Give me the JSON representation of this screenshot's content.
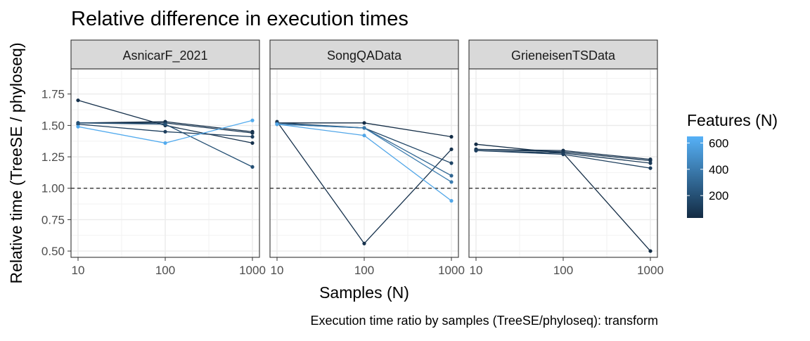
{
  "chart_data": {
    "type": "line",
    "title": "Relative difference in execution times",
    "xlabel": "Samples (N)",
    "ylabel": "Relative time (TreeSE / phyloseq)",
    "caption": "Execution time ratio by samples (TreeSE/phyloseq):  transform",
    "x_scale": "log10",
    "x_ticks": [
      10,
      100,
      1000
    ],
    "x_tick_labels": [
      "10",
      "100",
      "1000"
    ],
    "ylim": [
      0.45,
      1.95
    ],
    "y_ticks": [
      0.5,
      0.75,
      1.0,
      1.25,
      1.5,
      1.75
    ],
    "y_tick_labels": [
      "0.50",
      "0.75",
      "1.00",
      "1.25",
      "1.50",
      "1.75"
    ],
    "reference_line": 1.0,
    "grid": true,
    "legend": {
      "title": "Features (N)",
      "position": "right",
      "type": "colorbar",
      "range": [
        30,
        650
      ],
      "ticks": [
        200,
        400,
        600
      ],
      "tick_labels": [
        "200",
        "400",
        "600"
      ],
      "low_color": "#132B43",
      "high_color": "#56B1F7"
    },
    "facets": [
      {
        "label": "AsnicarF_2021",
        "series": [
          {
            "features": 60,
            "x": [
              10,
              100,
              1000
            ],
            "y": [
              1.7,
              1.5,
              1.36
            ]
          },
          {
            "features": 50,
            "x": [
              10,
              100,
              1000
            ],
            "y": [
              1.52,
              1.53,
              1.45
            ]
          },
          {
            "features": 80,
            "x": [
              10,
              100,
              1000
            ],
            "y": [
              1.52,
              1.52,
              1.44
            ]
          },
          {
            "features": 120,
            "x": [
              10,
              100,
              1000
            ],
            "y": [
              1.51,
              1.45,
              1.41
            ]
          },
          {
            "features": 200,
            "x": [
              10,
              100,
              1000
            ],
            "y": [
              1.52,
              1.51,
              1.17
            ]
          },
          {
            "features": 620,
            "x": [
              10,
              100,
              1000
            ],
            "y": [
              1.49,
              1.36,
              1.54
            ]
          }
        ]
      },
      {
        "label": "SongQAData",
        "series": [
          {
            "features": 40,
            "x": [
              10,
              100,
              1000
            ],
            "y": [
              1.52,
              1.52,
              1.41
            ]
          },
          {
            "features": 60,
            "x": [
              10,
              100,
              1000
            ],
            "y": [
              1.53,
              0.56,
              1.31
            ]
          },
          {
            "features": 150,
            "x": [
              10,
              100,
              1000
            ],
            "y": [
              1.52,
              1.48,
              1.2
            ]
          },
          {
            "features": 300,
            "x": [
              10,
              100,
              1000
            ],
            "y": [
              1.51,
              1.48,
              1.1
            ]
          },
          {
            "features": 400,
            "x": [
              10,
              100,
              1000
            ],
            "y": [
              1.51,
              1.48,
              1.05
            ]
          },
          {
            "features": 600,
            "x": [
              10,
              100,
              1000
            ],
            "y": [
              1.51,
              1.42,
              0.9
            ]
          }
        ]
      },
      {
        "label": "GrieneisenTSData",
        "series": [
          {
            "features": 40,
            "x": [
              10,
              100,
              1000
            ],
            "y": [
              1.35,
              1.28,
              0.5
            ]
          },
          {
            "features": 60,
            "x": [
              10,
              100,
              1000
            ],
            "y": [
              1.31,
              1.3,
              1.23
            ]
          },
          {
            "features": 80,
            "x": [
              10,
              100,
              1000
            ],
            "y": [
              1.31,
              1.29,
              1.22
            ]
          },
          {
            "features": 100,
            "x": [
              10,
              100,
              1000
            ],
            "y": [
              1.3,
              1.28,
              1.2
            ]
          },
          {
            "features": 120,
            "x": [
              10,
              100,
              1000
            ],
            "y": [
              1.3,
              1.27,
              1.16
            ]
          }
        ]
      }
    ]
  }
}
